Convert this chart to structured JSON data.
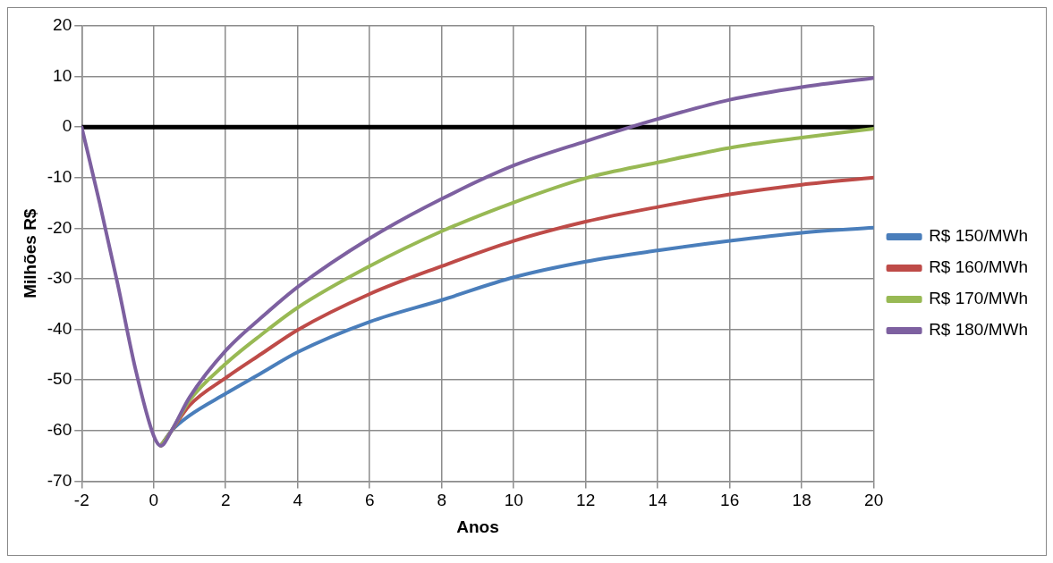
{
  "chart_data": {
    "type": "line",
    "xlabel": "Anos",
    "ylabel": "Milhões R$",
    "x": [
      -2,
      -1.5,
      -1,
      -0.5,
      0,
      0.2,
      0.5,
      1,
      2,
      3,
      4,
      6,
      8,
      10,
      12,
      14,
      16,
      18,
      20
    ],
    "series": [
      {
        "name": "R$ 150/MWh",
        "color": "#4a7ebb",
        "values": [
          null,
          null,
          null,
          null,
          null,
          -63,
          -60,
          -57,
          -52.7,
          -48.6,
          -44.5,
          -38.5,
          -34.2,
          -29.7,
          -26.6,
          -24.4,
          -22.5,
          -20.9,
          -19.9
        ]
      },
      {
        "name": "R$ 160/MWh",
        "color": "#be4b48",
        "values": [
          null,
          null,
          null,
          null,
          null,
          -63,
          -60,
          -55,
          -49.6,
          -44.8,
          -40.1,
          -33,
          -27.5,
          -22.5,
          -18.7,
          -15.8,
          -13.3,
          -11.4,
          -10
        ]
      },
      {
        "name": "R$ 170/MWh",
        "color": "#98b954",
        "values": [
          null,
          null,
          null,
          null,
          null,
          -63,
          -60,
          -54,
          -46.8,
          -41,
          -35.7,
          -27.5,
          -20.6,
          -14.9,
          -10.1,
          -7,
          -4.1,
          -2.1,
          -0.3
        ]
      },
      {
        "name": "R$ 180/MWh",
        "color": "#7d60a0",
        "values": [
          0,
          -15,
          -31,
          -48,
          -61,
          -63,
          -60,
          -53.4,
          -44.2,
          -37.6,
          -31.6,
          -22,
          -14.2,
          -7.6,
          -2.8,
          1.6,
          5.4,
          7.9,
          9.7
        ]
      }
    ],
    "xlim": [
      -2,
      20
    ],
    "xticks": [
      -2,
      0,
      2,
      4,
      6,
      8,
      10,
      12,
      14,
      16,
      18,
      20
    ],
    "ylim": [
      -70,
      20
    ],
    "yticks": [
      -70,
      -60,
      -50,
      -40,
      -30,
      -20,
      -10,
      0,
      10,
      20
    ],
    "ref_lines": [
      {
        "axis": "y",
        "value": 0,
        "color": "#000000"
      }
    ],
    "grid": true,
    "legend": "right",
    "marker": "none",
    "line_style": "solid"
  }
}
